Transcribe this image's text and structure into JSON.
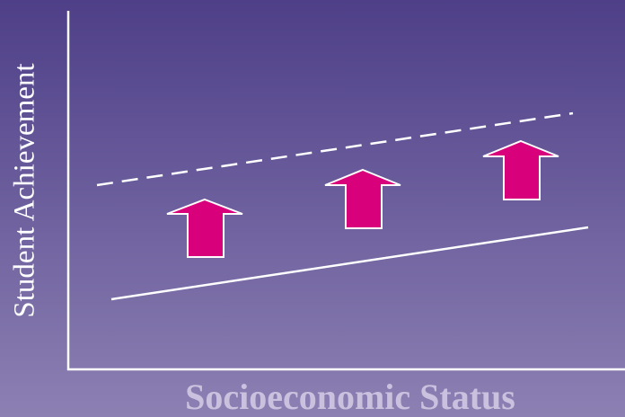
{
  "y_axis_label": "Student Achievement",
  "x_axis_label": "Socioeconomic Status"
}
